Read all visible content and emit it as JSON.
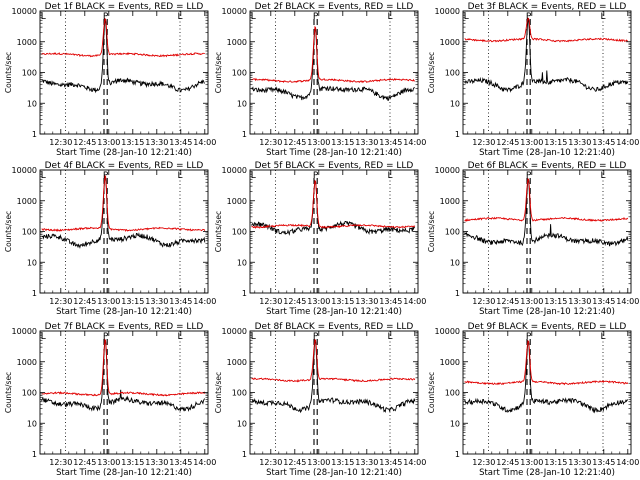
{
  "chart_data": {
    "type": "line",
    "x_tick_labels": [
      "12:30",
      "12:45",
      "13:00",
      "13:15",
      "13:30",
      "13:45",
      "14:00"
    ],
    "x_tick_values_min": [
      -30,
      -15,
      0,
      15,
      30,
      45,
      60
    ],
    "xlim_min": [
      -43,
      62
    ],
    "x_origin": "13:00",
    "xlabel": "Start Time (28-Jan-10 12:21:40)",
    "ylabel": "Counts/sec",
    "y_scale": "log",
    "ylim": [
      1,
      10000
    ],
    "y_tick_labels": [
      "1",
      "10",
      "100",
      "1000",
      "10000"
    ],
    "y_tick_values": [
      1,
      10,
      100,
      1000,
      10000
    ],
    "vertical_dotted_lines_min": [
      -27,
      44.5
    ],
    "vertical_dashed_lines_min": [
      -3,
      -1
    ],
    "panel_markers": [
      "L",
      "P",
      "L"
    ],
    "panel_marker_positions_min": [
      -41,
      -2,
      44.5
    ],
    "colors": {
      "events": "#000000",
      "lld": "#e00000"
    },
    "series_colors_note": "BLACK = Events, RED = LLD",
    "panels": [
      {
        "title": "Det 1f BLACK = Events, RED = LLD",
        "lld_base": 380,
        "ev_base": 42,
        "peak": 5500,
        "lld_peak": 5800,
        "spikes": true
      },
      {
        "title": "Det 2f BLACK = Events, RED = LLD",
        "lld_base": 55,
        "ev_base": 25,
        "peak": 3000,
        "lld_peak": 3200,
        "spikes": false
      },
      {
        "title": "Det 3f BLACK = Events, RED = LLD",
        "lld_base": 1150,
        "ev_base": 45,
        "peak": 5800,
        "lld_peak": 6000,
        "spikes": true
      },
      {
        "title": "Det 4f BLACK = Events, RED = LLD",
        "lld_base": 120,
        "ev_base": 55,
        "peak": 6500,
        "lld_peak": 6800,
        "spikes": false
      },
      {
        "title": "Det 5f BLACK = Events, RED = LLD",
        "lld_base": 150,
        "ev_base": 130,
        "peak": 4500,
        "lld_peak": 4700,
        "spikes": false
      },
      {
        "title": "Det 6f BLACK = Events, RED = LLD",
        "lld_base": 250,
        "ev_base": 55,
        "peak": 5200,
        "lld_peak": 5400,
        "spikes": true
      },
      {
        "title": "Det 7f BLACK = Events, RED = LLD",
        "lld_base": 90,
        "ev_base": 45,
        "peak": 5200,
        "lld_peak": 5500,
        "spikes": true
      },
      {
        "title": "Det 8f BLACK = Events, RED = LLD",
        "lld_base": 260,
        "ev_base": 45,
        "peak": 5200,
        "lld_peak": 5400,
        "spikes": false
      },
      {
        "title": "Det 9f BLACK = Events, RED = LLD",
        "lld_base": 210,
        "ev_base": 45,
        "peak": 4800,
        "lld_peak": 5000,
        "spikes": false
      }
    ]
  }
}
